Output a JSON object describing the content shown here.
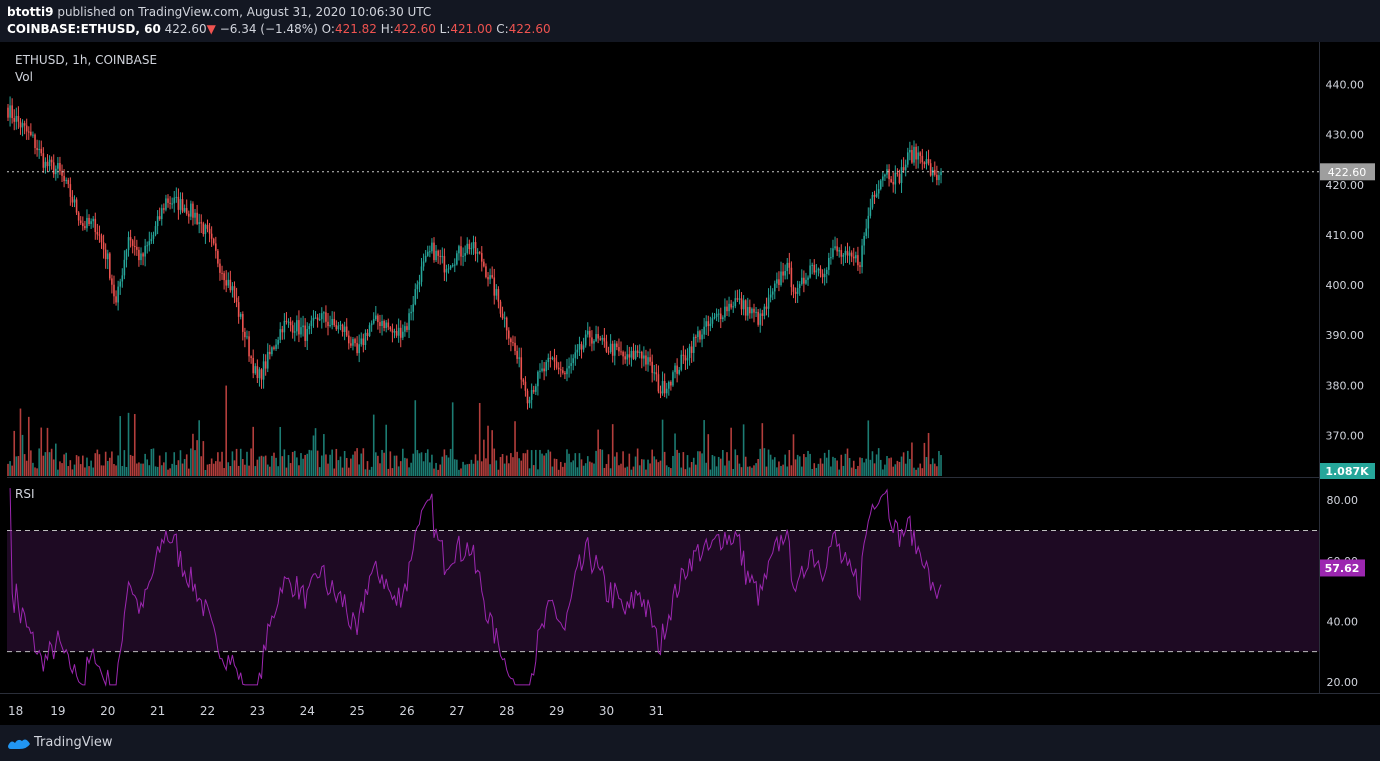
{
  "header": {
    "author": "btotti9",
    "published_text": " published on TradingView.com, August 31, 2020 10:06:30 UTC",
    "symbol": "COINBASE:ETHUSD, 60",
    "last": "422.60",
    "change": "−6.34 (−1.48%)",
    "o_label": "O:",
    "o_value": "421.82",
    "h_label": "H:",
    "h_value": "422.60",
    "l_label": "L:",
    "l_value": "421.00",
    "c_label": "C:",
    "c_value": "422.60"
  },
  "legend": {
    "title": "ETHUSD, 1h, COINBASE",
    "volume": "Vol",
    "rsi": "RSI"
  },
  "footer": {
    "brand": "TradingView"
  },
  "colors": {
    "up": "#26a69a",
    "down": "#ef5350",
    "rsi_line": "#9c27b0",
    "rsi_band": "#1e0a23",
    "price_tag": "#9e9e9e",
    "vol_tag": "#26a69a"
  },
  "chart_data": [
    {
      "type": "candlestick",
      "title": "ETHUSD, 1h, COINBASE",
      "x_tick_labels": [
        "18",
        "19",
        "20",
        "21",
        "22",
        "23",
        "24",
        "25",
        "26",
        "27",
        "28",
        "29",
        "30",
        "31"
      ],
      "y_ticks": [
        370,
        380,
        390,
        400,
        410,
        420,
        430,
        440
      ],
      "y_tick_labels": [
        "370.00",
        "380.00",
        "390.00",
        "400.00",
        "410.00",
        "420.00",
        "430.00",
        "440.00"
      ],
      "ylim": [
        362.5,
        447.5
      ],
      "last_price": 422.6,
      "last_price_label": "422.60",
      "bars_per_day": 24,
      "approx_close_path": [
        [
          0,
          435
        ],
        [
          6,
          432
        ],
        [
          12,
          429
        ],
        [
          18,
          424
        ],
        [
          24,
          423
        ],
        [
          30,
          418
        ],
        [
          36,
          412
        ],
        [
          42,
          412
        ],
        [
          48,
          405
        ],
        [
          52,
          396
        ],
        [
          58,
          410
        ],
        [
          64,
          405
        ],
        [
          70,
          410
        ],
        [
          76,
          417
        ],
        [
          84,
          416
        ],
        [
          90,
          414
        ],
        [
          96,
          410
        ],
        [
          102,
          404
        ],
        [
          108,
          399
        ],
        [
          114,
          390
        ],
        [
          120,
          381
        ],
        [
          126,
          386
        ],
        [
          132,
          392
        ],
        [
          138,
          392
        ],
        [
          144,
          390
        ],
        [
          150,
          394
        ],
        [
          156,
          392
        ],
        [
          162,
          391
        ],
        [
          168,
          386
        ],
        [
          174,
          392
        ],
        [
          180,
          393
        ],
        [
          186,
          390
        ],
        [
          192,
          392
        ],
        [
          198,
          402
        ],
        [
          204,
          407
        ],
        [
          210,
          404
        ],
        [
          216,
          406
        ],
        [
          222,
          408
        ],
        [
          228,
          405
        ],
        [
          234,
          399
        ],
        [
          240,
          392
        ],
        [
          246,
          384
        ],
        [
          250,
          378
        ],
        [
          256,
          382
        ],
        [
          262,
          385
        ],
        [
          268,
          382
        ],
        [
          274,
          386
        ],
        [
          280,
          390
        ],
        [
          286,
          388
        ],
        [
          292,
          387
        ],
        [
          298,
          385
        ],
        [
          304,
          387
        ],
        [
          310,
          383
        ],
        [
          314,
          379
        ],
        [
          320,
          382
        ],
        [
          326,
          386
        ],
        [
          332,
          390
        ],
        [
          338,
          392
        ],
        [
          344,
          395
        ],
        [
          350,
          397
        ],
        [
          356,
          395
        ],
        [
          362,
          393
        ],
        [
          368,
          398
        ],
        [
          374,
          404
        ],
        [
          380,
          398
        ],
        [
          386,
          404
        ],
        [
          392,
          403
        ],
        [
          398,
          407
        ],
        [
          404,
          405
        ],
        [
          410,
          405
        ],
        [
          416,
          418
        ],
        [
          422,
          423
        ],
        [
          428,
          421
        ],
        [
          434,
          426
        ],
        [
          440,
          426
        ],
        [
          446,
          421
        ],
        [
          449,
          422.6
        ]
      ]
    },
    {
      "type": "bar",
      "name": "Vol",
      "last_value_label": "1.087K",
      "spike_bars": [
        6,
        54,
        61,
        105,
        196,
        214,
        227,
        335,
        456
      ]
    },
    {
      "type": "line",
      "name": "RSI",
      "y_ticks": [
        20,
        40,
        60,
        80
      ],
      "y_tick_labels": [
        "20.00",
        "40.00",
        "60.00",
        "80.00"
      ],
      "ylim": [
        17,
        86
      ],
      "band": [
        30,
        70
      ],
      "last_value": 57.62,
      "last_value_label": "57.62"
    }
  ]
}
